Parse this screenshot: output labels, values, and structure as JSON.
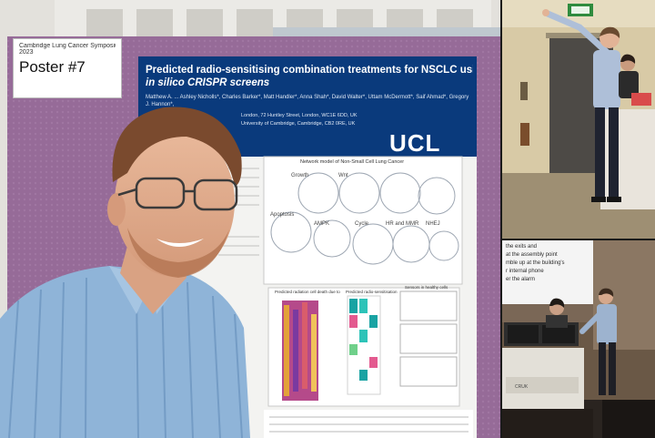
{
  "main_photo": {
    "event_sign_line1": "Cambridge Lung Cancer Symposium",
    "event_sign_line2": "2023",
    "poster_number": "Poster #7",
    "poster_title_line1": "Predicted radio-sensitising combination treatments for NSCLC using",
    "poster_title_line2": "in silico CRISPR screens",
    "poster_authors": "Matthew A. ...   Ashley Nicholls*, Charles Barker*, Matt Handler*, Anna Shah*, David Walter*, Uttam McDermott*, Saif Ahmad*, Gregory J. Hannon*,",
    "poster_affiliation_1": "London, 72 Huntley Street, London, WC1E 6DD, UK",
    "poster_affiliation_2": "University of Cambridge, Cambridge, CB2 0RE, UK",
    "logo_text": "UCL",
    "network_title": "Network model of Non-Small Cell Lung Cancer",
    "network_labels": [
      "Growth",
      "Wnt",
      "Apoptosis",
      "AMPK",
      "Cycle",
      "HR and MMR",
      "NHEJ"
    ],
    "fig_b_title": "Predicted radiation cell death due to",
    "fig_c_title": "Predicted radio-sensitisation",
    "fig_d_title": "Sensors in healthy cells"
  },
  "bottom_right_photo": {
    "screen_line_1": "the exits and",
    "screen_line_2": "at the assembly point",
    "screen_line_3": "mble up at the building's",
    "screen_line_4": "r internal phone",
    "screen_line_5": "er the alarm"
  },
  "colors": {
    "board_purple": "#9a6f9c",
    "poster_blue": "#0a3a7c",
    "shirt_blue": "#8fb4d8"
  }
}
